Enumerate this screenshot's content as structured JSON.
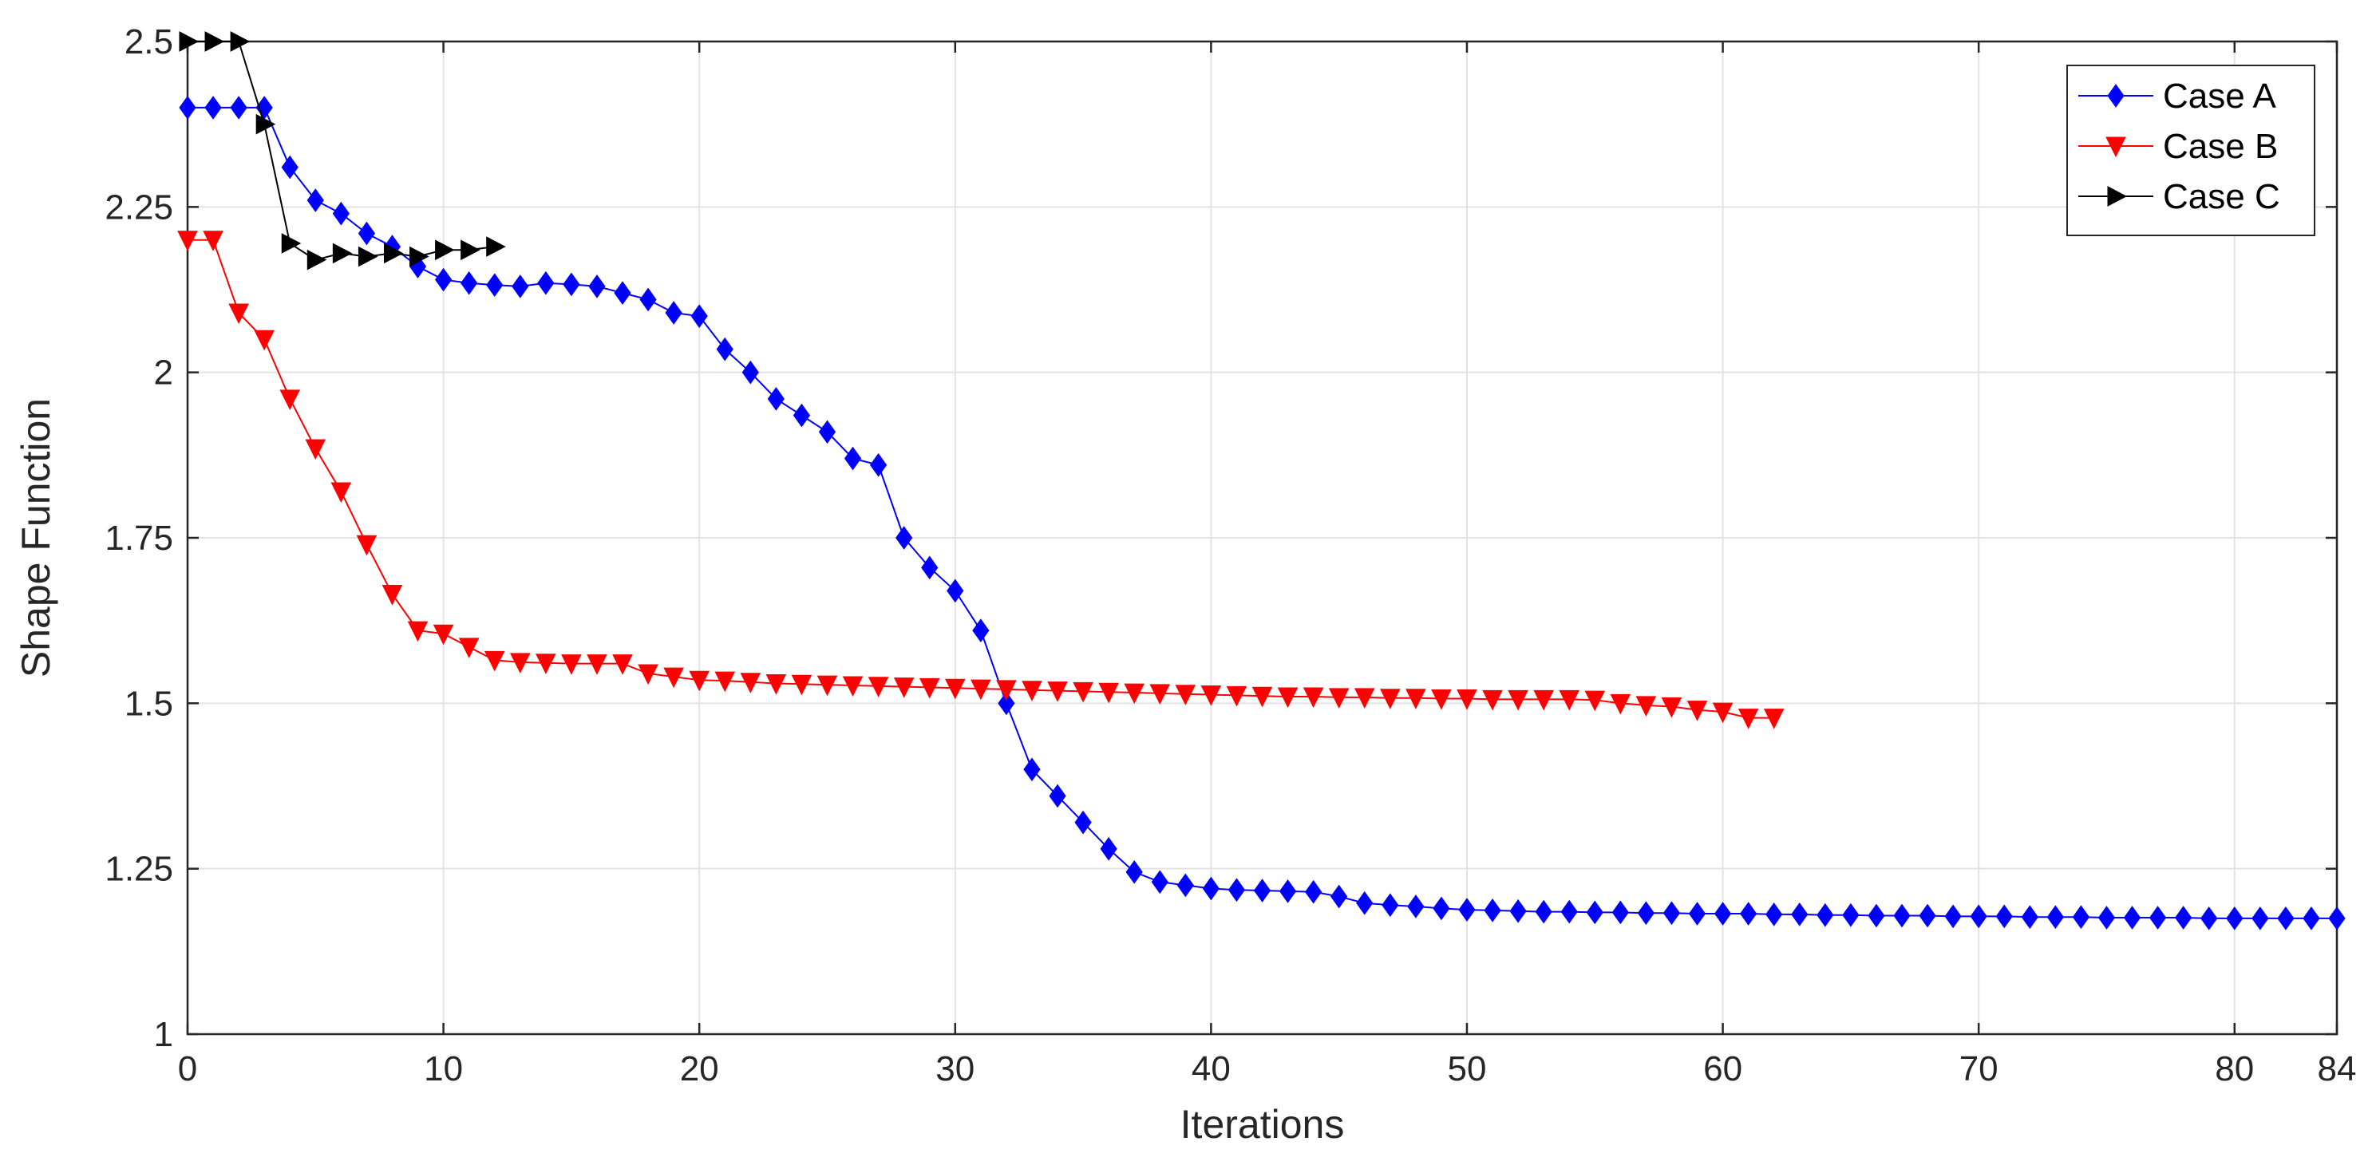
{
  "chart_data": {
    "type": "line",
    "title": "",
    "xlabel": "Iterations",
    "ylabel": "Shape Function",
    "xlim": [
      0,
      84
    ],
    "ylim": [
      1,
      2.5
    ],
    "xticks": [
      0,
      10,
      20,
      30,
      40,
      50,
      60,
      70,
      80,
      84
    ],
    "yticks": [
      1,
      1.25,
      1.5,
      1.75,
      2,
      2.25,
      2.5
    ],
    "ytick_labels": [
      "1",
      "1.25",
      "1.5",
      "1.75",
      "2",
      "2.25",
      "2.5"
    ],
    "grid": true,
    "legend_position": "top-right",
    "series": [
      {
        "name": "Case A",
        "color": "#0000ff",
        "marker": "diamond",
        "x": [
          0,
          1,
          2,
          3,
          4,
          5,
          6,
          7,
          8,
          9,
          10,
          11,
          12,
          13,
          14,
          15,
          16,
          17,
          18,
          19,
          20,
          21,
          22,
          23,
          24,
          25,
          26,
          27,
          28,
          29,
          30,
          31,
          32,
          33,
          34,
          35,
          36,
          37,
          38,
          39,
          40,
          41,
          42,
          43,
          44,
          45,
          46,
          47,
          48,
          49,
          50,
          51,
          52,
          53,
          54,
          55,
          56,
          57,
          58,
          59,
          60,
          61,
          62,
          63,
          64,
          65,
          66,
          67,
          68,
          69,
          70,
          71,
          72,
          73,
          74,
          75,
          76,
          77,
          78,
          79,
          80,
          81,
          82,
          83,
          84
        ],
        "y": [
          2.4,
          2.4,
          2.4,
          2.4,
          2.31,
          2.26,
          2.24,
          2.21,
          2.19,
          2.16,
          2.14,
          2.135,
          2.132,
          2.13,
          2.135,
          2.133,
          2.13,
          2.12,
          2.11,
          2.09,
          2.085,
          2.035,
          2.0,
          1.96,
          1.935,
          1.91,
          1.87,
          1.86,
          1.75,
          1.705,
          1.67,
          1.61,
          1.5,
          1.4,
          1.36,
          1.32,
          1.28,
          1.245,
          1.23,
          1.225,
          1.22,
          1.218,
          1.217,
          1.216,
          1.215,
          1.208,
          1.198,
          1.195,
          1.193,
          1.19,
          1.188,
          1.187,
          1.186,
          1.185,
          1.185,
          1.184,
          1.184,
          1.183,
          1.183,
          1.182,
          1.182,
          1.182,
          1.181,
          1.181,
          1.18,
          1.18,
          1.179,
          1.179,
          1.179,
          1.178,
          1.178,
          1.178,
          1.177,
          1.177,
          1.177,
          1.176,
          1.176,
          1.176,
          1.176,
          1.175,
          1.175,
          1.175,
          1.175,
          1.175,
          1.175
        ]
      },
      {
        "name": "Case B",
        "color": "#ff0000",
        "marker": "triangle-down",
        "x": [
          0,
          1,
          2,
          3,
          4,
          5,
          6,
          7,
          8,
          9,
          10,
          11,
          12,
          13,
          14,
          15,
          16,
          17,
          18,
          19,
          20,
          21,
          22,
          23,
          24,
          25,
          26,
          27,
          28,
          29,
          30,
          31,
          32,
          33,
          34,
          35,
          36,
          37,
          38,
          39,
          40,
          41,
          42,
          43,
          44,
          45,
          46,
          47,
          48,
          49,
          50,
          51,
          52,
          53,
          54,
          55,
          56,
          57,
          58,
          59,
          60,
          61,
          62
        ],
        "y": [
          2.2,
          2.2,
          2.09,
          2.05,
          1.96,
          1.885,
          1.82,
          1.74,
          1.665,
          1.61,
          1.605,
          1.585,
          1.565,
          1.562,
          1.561,
          1.56,
          1.56,
          1.56,
          1.545,
          1.54,
          1.535,
          1.534,
          1.532,
          1.53,
          1.529,
          1.528,
          1.527,
          1.526,
          1.525,
          1.524,
          1.523,
          1.522,
          1.521,
          1.52,
          1.519,
          1.518,
          1.517,
          1.516,
          1.515,
          1.514,
          1.513,
          1.512,
          1.511,
          1.51,
          1.51,
          1.509,
          1.509,
          1.508,
          1.508,
          1.507,
          1.507,
          1.506,
          1.506,
          1.506,
          1.506,
          1.505,
          1.5,
          1.497,
          1.495,
          1.49,
          1.487,
          1.478,
          1.478
        ]
      },
      {
        "name": "Case C",
        "color": "#000000",
        "marker": "triangle-right",
        "x": [
          0,
          1,
          2,
          3,
          4,
          5,
          6,
          7,
          8,
          9,
          10,
          11,
          12
        ],
        "y": [
          2.5,
          2.5,
          2.5,
          2.375,
          2.195,
          2.17,
          2.18,
          2.175,
          2.18,
          2.175,
          2.185,
          2.185,
          2.19
        ]
      }
    ]
  }
}
